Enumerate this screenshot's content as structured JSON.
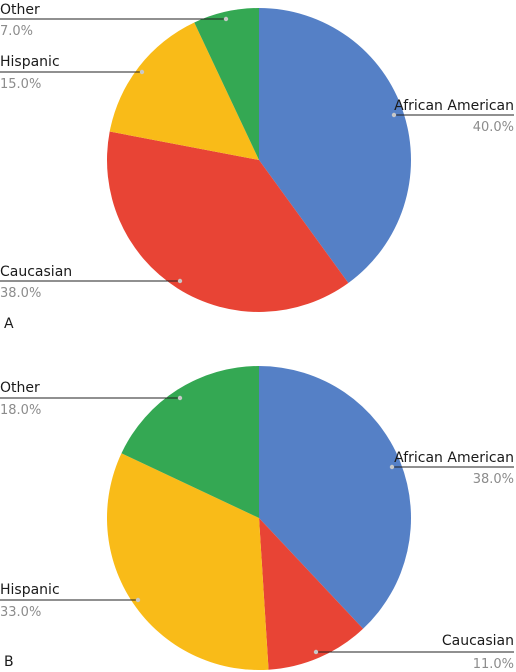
{
  "colors": {
    "African American": "#5580c6",
    "Caucasian": "#e84435",
    "Hispanic": "#f9bb18",
    "Other": "#34a853"
  },
  "chart_data": [
    {
      "type": "pie",
      "panel": "A",
      "start_angle_deg": 0,
      "direction": "clockwise",
      "slices": [
        {
          "label": "African American",
          "value": 40.0,
          "display": "40.0%",
          "label_side": "right"
        },
        {
          "label": "Caucasian",
          "value": 38.0,
          "display": "38.0%",
          "label_side": "left"
        },
        {
          "label": "Hispanic",
          "value": 15.0,
          "display": "15.0%",
          "label_side": "left"
        },
        {
          "label": "Other",
          "value": 7.0,
          "display": "7.0%",
          "label_side": "left"
        }
      ]
    },
    {
      "type": "pie",
      "panel": "B",
      "start_angle_deg": 0,
      "direction": "clockwise",
      "slices": [
        {
          "label": "African American",
          "value": 38.0,
          "display": "38.0%",
          "label_side": "right"
        },
        {
          "label": "Caucasian",
          "value": 11.0,
          "display": "11.0%",
          "label_side": "right"
        },
        {
          "label": "Hispanic",
          "value": 33.0,
          "display": "33.0%",
          "label_side": "left"
        },
        {
          "label": "Other",
          "value": 18.0,
          "display": "18.0%",
          "label_side": "left"
        }
      ]
    }
  ]
}
